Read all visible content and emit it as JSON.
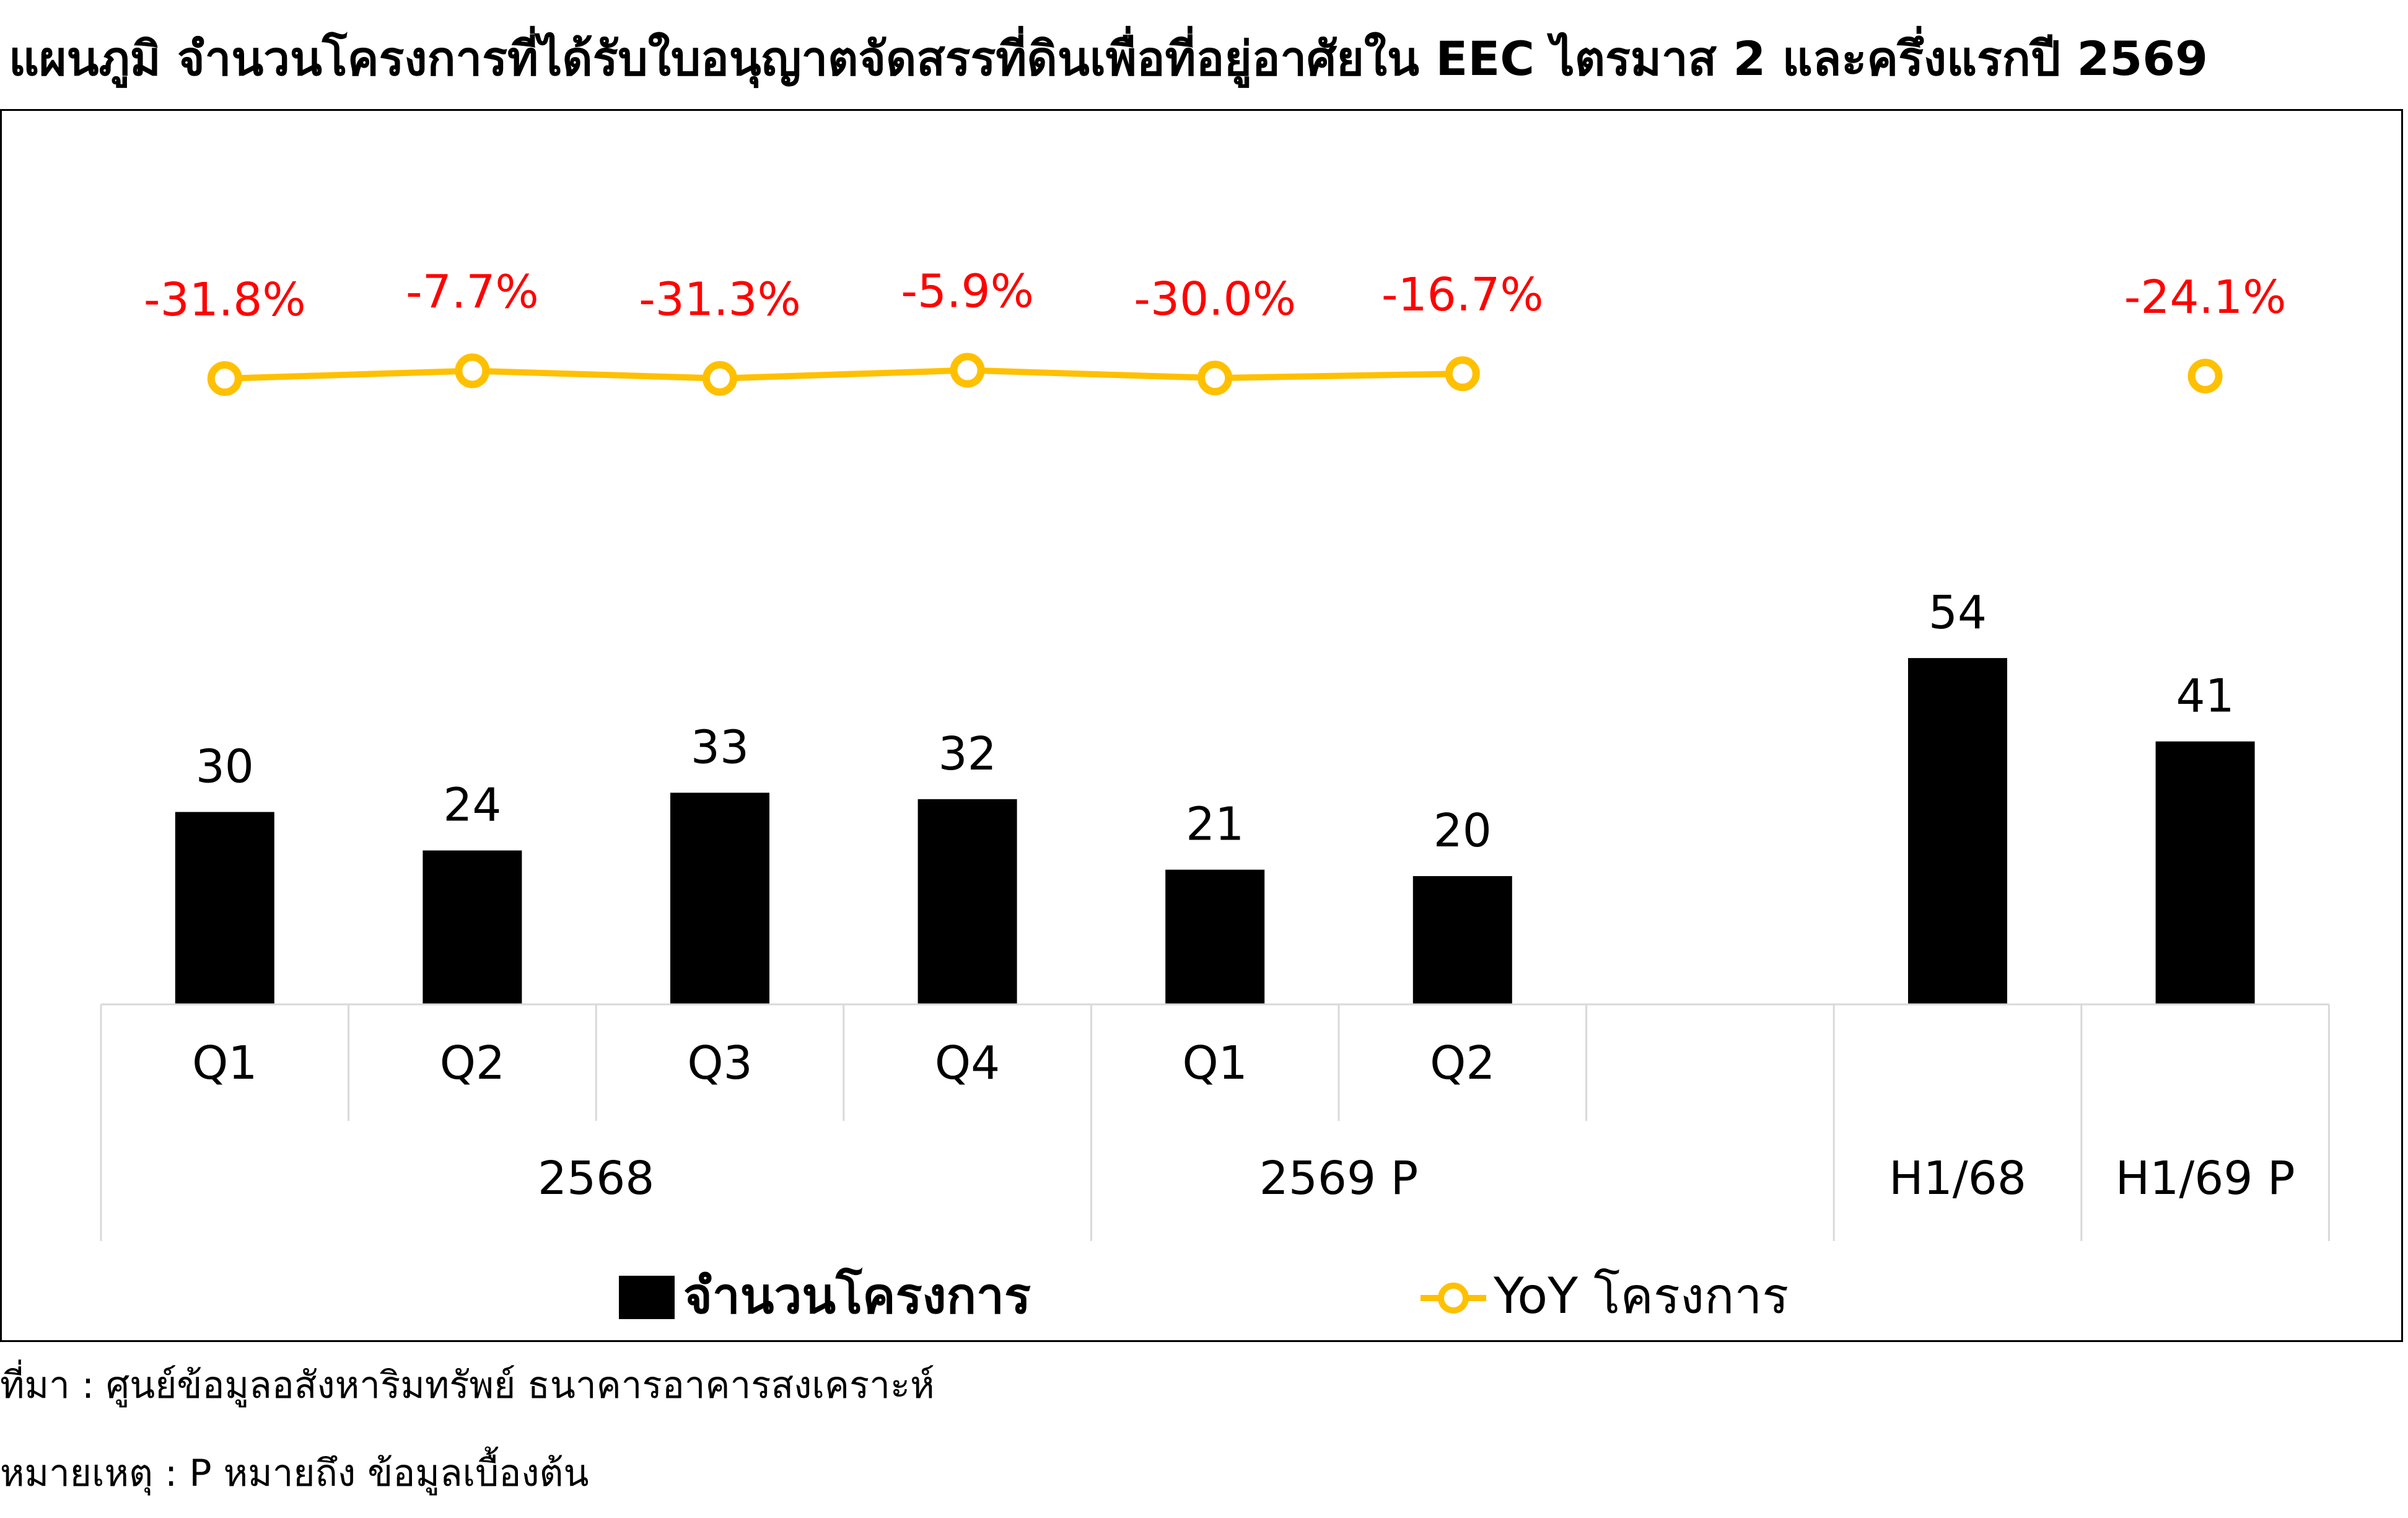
{
  "title_prefix": "แผนภูมิ",
  "title_text": "จำนวนโครงการที่ได้รับใบอนุญาตจัดสรรที่ดินเพื่อที่อยู่อาศัยใน EEC ไตรมาส 2 และครึ่งแรกปี 2569",
  "source_note": "ที่มา : ศูนย์ข้อมูลอสังหาริมทรัพย์ ธนาคารอาคารสงเคราะห์",
  "remark_note": "หมายเหตุ : P หมายถึง ข้อมูลเบื้องต้น",
  "chart_data": {
    "type": "bar",
    "categories": [
      "Q1",
      "Q2",
      "Q3",
      "Q4",
      "Q1",
      "Q2",
      "",
      "H1/68",
      "H1/69 P"
    ],
    "groups": [
      {
        "label": "2568",
        "span": [
          0,
          3
        ]
      },
      {
        "label": "2569 P",
        "span": [
          4,
          6
        ]
      },
      {
        "label": "H1/68",
        "span": [
          7,
          7
        ]
      },
      {
        "label": "H1/69 P",
        "span": [
          8,
          8
        ]
      }
    ],
    "series": [
      {
        "name": "จำนวนโครงการ",
        "type": "bar",
        "color": "#000000",
        "values": [
          30,
          24,
          33,
          32,
          21,
          20,
          null,
          54,
          41
        ]
      },
      {
        "name": "YoY  โครงการ",
        "type": "line",
        "color": "#FFC000",
        "values": [
          -31.8,
          -7.7,
          -31.3,
          -5.9,
          -30.0,
          -16.7,
          null,
          null,
          -24.1
        ],
        "labels": [
          "-31.8%",
          "-7.7%",
          "-31.3%",
          "-5.9%",
          "-30.0%",
          "-16.7%",
          "",
          "",
          "-24.1%"
        ],
        "label_color": "#FF0000"
      }
    ],
    "legend_position": "bottom",
    "grid": false
  }
}
